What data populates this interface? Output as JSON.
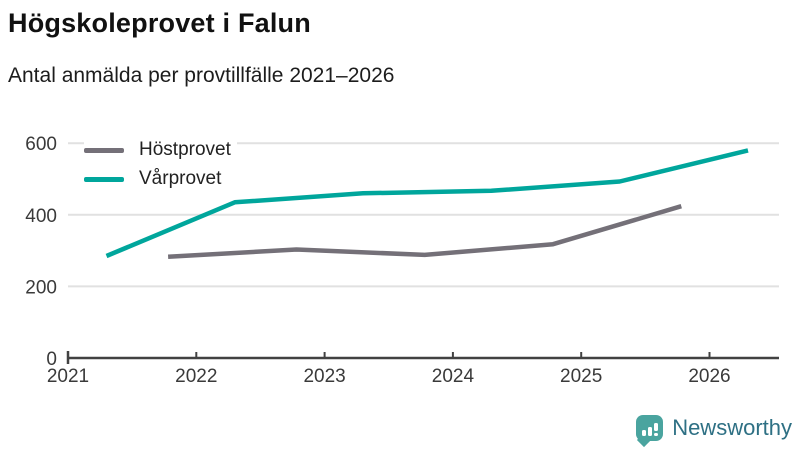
{
  "header": {
    "title": "Högskoleprovet i Falun",
    "subtitle": "Antal anmälda per provtillfälle 2021–2026"
  },
  "chart_data": {
    "type": "line",
    "title": "Högskoleprovet i Falun",
    "subtitle": "Antal anmälda per provtillfälle 2021–2026",
    "xlabel": "",
    "ylabel": "",
    "x_ticks": [
      2021,
      2022,
      2023,
      2024,
      2025,
      2026
    ],
    "y_ticks": [
      0,
      200,
      400,
      600
    ],
    "xlim": [
      2021,
      2026.55
    ],
    "ylim": [
      0,
      600
    ],
    "grid": "horizontal gridlines at 200/400/600",
    "legend_position": "top-left",
    "series": [
      {
        "name": "Höstprovet",
        "color": "#747078",
        "x": [
          2021.78,
          2022.78,
          2023.78,
          2024.78,
          2025.78
        ],
        "values": [
          283,
          303,
          288,
          318,
          424
        ]
      },
      {
        "name": "Vårprovet",
        "color": "#00a69c",
        "x": [
          2021.3,
          2022.3,
          2023.3,
          2024.3,
          2025.3,
          2026.3
        ],
        "values": [
          285,
          435,
          460,
          467,
          493,
          580
        ]
      }
    ],
    "colors": {
      "gridline": "#e1e1e1",
      "axis": "#424242",
      "tick_label": "#3a3a3a"
    }
  },
  "branding": {
    "logo_text": "Newsworthy",
    "icon": "bar-chart-speech-bubble-icon",
    "icon_color": "#4aa49f",
    "text_color": "#2e7084"
  }
}
